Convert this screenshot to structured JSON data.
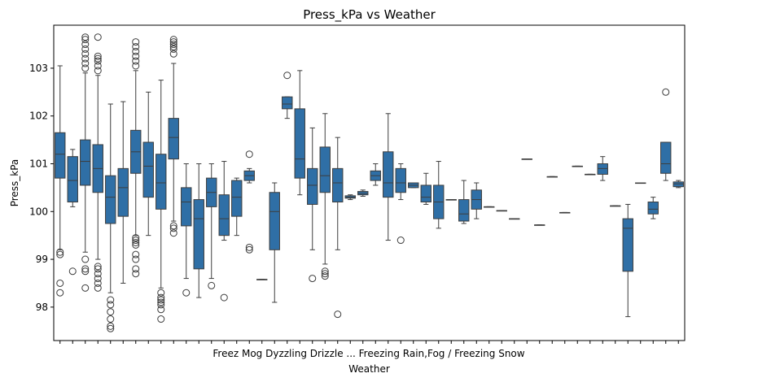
{
  "chart_data": {
    "type": "box",
    "title": "Press_kPa vs Weather",
    "xlabel": "Weather",
    "ylabel": "Press_kPa",
    "ylim": [
      97.3,
      103.9
    ],
    "yticks": [
      98,
      99,
      100,
      101,
      102,
      103
    ],
    "grid": false,
    "box_color": "#2f6fa6",
    "x_tick_labels_text": "Freez Mog Dyzzling Drizzle ... Freezing Rain,Fog / Freezing Snow",
    "categories": [
      {
        "q1": 100.7,
        "med": 101.2,
        "q3": 101.65,
        "wlo": 99.2,
        "whi": 103.05,
        "fliers": [
          99.1,
          99.15,
          98.5,
          98.3
        ]
      },
      {
        "q1": 100.2,
        "med": 100.65,
        "q3": 101.15,
        "wlo": 100.1,
        "whi": 101.3,
        "fliers": [
          98.75
        ]
      },
      {
        "q1": 100.55,
        "med": 101.05,
        "q3": 101.5,
        "wlo": 99.15,
        "whi": 102.9,
        "fliers": [
          98.4,
          98.75,
          98.8,
          99.0,
          103.0,
          103.1,
          103.2,
          103.3,
          103.4,
          103.5,
          103.6,
          103.65
        ]
      },
      {
        "q1": 100.4,
        "med": 100.9,
        "q3": 101.4,
        "wlo": 99.0,
        "whi": 102.85,
        "fliers": [
          98.4,
          98.5,
          98.6,
          98.7,
          98.8,
          98.85,
          102.95,
          103.05,
          103.15,
          103.2,
          103.25,
          103.65
        ]
      },
      {
        "q1": 99.75,
        "med": 100.3,
        "q3": 100.75,
        "wlo": 98.3,
        "whi": 102.25,
        "fliers": [
          97.55,
          97.6,
          97.75,
          97.9,
          98.05,
          98.15
        ]
      },
      {
        "q1": 99.9,
        "med": 100.5,
        "q3": 100.9,
        "wlo": 98.5,
        "whi": 102.3,
        "fliers": []
      },
      {
        "q1": 100.8,
        "med": 101.25,
        "q3": 101.7,
        "wlo": 99.5,
        "whi": 102.95,
        "fliers": [
          98.7,
          98.8,
          99.0,
          99.1,
          99.3,
          99.35,
          99.4,
          99.45,
          103.05,
          103.15,
          103.25,
          103.35,
          103.45,
          103.55
        ]
      },
      {
        "q1": 100.3,
        "med": 100.95,
        "q3": 101.45,
        "wlo": 99.5,
        "whi": 102.5,
        "fliers": []
      },
      {
        "q1": 100.05,
        "med": 100.6,
        "q3": 101.2,
        "wlo": 98.4,
        "whi": 102.75,
        "fliers": [
          97.75,
          97.95,
          98.05,
          98.1,
          98.15,
          98.2,
          98.3
        ]
      },
      {
        "q1": 101.1,
        "med": 101.55,
        "q3": 101.95,
        "wlo": 99.8,
        "whi": 103.1,
        "fliers": [
          99.55,
          99.65,
          99.7,
          103.3,
          103.4,
          103.45,
          103.5,
          103.55,
          103.6
        ]
      },
      {
        "q1": 99.7,
        "med": 100.2,
        "q3": 100.5,
        "wlo": 98.6,
        "whi": 101.0,
        "fliers": [
          98.3
        ]
      },
      {
        "q1": 98.8,
        "med": 99.85,
        "q3": 100.25,
        "wlo": 98.2,
        "whi": 101.0,
        "fliers": []
      },
      {
        "q1": 100.1,
        "med": 100.4,
        "q3": 100.7,
        "wlo": 98.6,
        "whi": 101.0,
        "fliers": [
          98.45
        ]
      },
      {
        "q1": 99.5,
        "med": 99.85,
        "q3": 100.35,
        "wlo": 99.4,
        "whi": 101.05,
        "fliers": [
          98.2
        ]
      },
      {
        "q1": 99.9,
        "med": 100.3,
        "q3": 100.65,
        "wlo": 99.5,
        "whi": 100.7,
        "fliers": []
      },
      {
        "q1": 100.65,
        "med": 100.75,
        "q3": 100.85,
        "wlo": 100.6,
        "whi": 100.9,
        "fliers": [
          101.2,
          99.25,
          99.2
        ]
      },
      {
        "q1": 98.58,
        "med": 98.58,
        "q3": 98.58,
        "wlo": 98.58,
        "whi": 98.58,
        "fliers": []
      },
      {
        "q1": 99.2,
        "med": 100.0,
        "q3": 100.4,
        "wlo": 98.1,
        "whi": 100.6,
        "fliers": []
      },
      {
        "q1": 102.15,
        "med": 102.25,
        "q3": 102.4,
        "wlo": 101.95,
        "whi": 102.4,
        "fliers": [
          102.85
        ]
      },
      {
        "q1": 100.7,
        "med": 101.1,
        "q3": 102.15,
        "wlo": 100.35,
        "whi": 102.95,
        "fliers": []
      },
      {
        "q1": 100.15,
        "med": 100.55,
        "q3": 100.9,
        "wlo": 99.2,
        "whi": 101.75,
        "fliers": [
          98.6
        ]
      },
      {
        "q1": 100.4,
        "med": 100.75,
        "q3": 101.35,
        "wlo": 98.9,
        "whi": 102.05,
        "fliers": [
          98.65,
          98.7,
          98.75
        ]
      },
      {
        "q1": 100.2,
        "med": 100.6,
        "q3": 100.9,
        "wlo": 99.2,
        "whi": 101.55,
        "fliers": [
          97.85
        ]
      },
      {
        "q1": 100.28,
        "med": 100.3,
        "q3": 100.33,
        "wlo": 100.25,
        "whi": 100.35,
        "fliers": []
      },
      {
        "q1": 100.35,
        "med": 100.38,
        "q3": 100.42,
        "wlo": 100.32,
        "whi": 100.45,
        "fliers": []
      },
      {
        "q1": 100.65,
        "med": 100.75,
        "q3": 100.85,
        "wlo": 100.55,
        "whi": 101.0,
        "fliers": []
      },
      {
        "q1": 100.3,
        "med": 100.6,
        "q3": 101.25,
        "wlo": 99.4,
        "whi": 102.05,
        "fliers": []
      },
      {
        "q1": 100.4,
        "med": 100.6,
        "q3": 100.9,
        "wlo": 100.25,
        "whi": 101.0,
        "fliers": [
          99.4
        ]
      },
      {
        "q1": 100.5,
        "med": 100.55,
        "q3": 100.6,
        "wlo": 100.5,
        "whi": 100.6,
        "fliers": []
      },
      {
        "q1": 100.2,
        "med": 100.3,
        "q3": 100.55,
        "wlo": 100.15,
        "whi": 100.8,
        "fliers": []
      },
      {
        "q1": 99.85,
        "med": 100.2,
        "q3": 100.55,
        "wlo": 99.65,
        "whi": 101.05,
        "fliers": []
      },
      {
        "q1": 100.25,
        "med": 100.25,
        "q3": 100.25,
        "wlo": 100.25,
        "whi": 100.25,
        "fliers": []
      },
      {
        "q1": 99.8,
        "med": 99.95,
        "q3": 100.25,
        "wlo": 99.75,
        "whi": 100.65,
        "fliers": []
      },
      {
        "q1": 100.05,
        "med": 100.25,
        "q3": 100.45,
        "wlo": 99.85,
        "whi": 100.6,
        "fliers": []
      },
      {
        "q1": 100.1,
        "med": 100.1,
        "q3": 100.1,
        "wlo": 100.1,
        "whi": 100.1,
        "fliers": []
      },
      {
        "q1": 100.02,
        "med": 100.02,
        "q3": 100.02,
        "wlo": 100.02,
        "whi": 100.02,
        "fliers": []
      },
      {
        "q1": 99.85,
        "med": 99.85,
        "q3": 99.85,
        "wlo": 99.85,
        "whi": 99.85,
        "fliers": []
      },
      {
        "q1": 101.1,
        "med": 101.1,
        "q3": 101.1,
        "wlo": 101.1,
        "whi": 101.1,
        "fliers": []
      },
      {
        "q1": 99.72,
        "med": 99.72,
        "q3": 99.72,
        "wlo": 99.72,
        "whi": 99.72,
        "fliers": []
      },
      {
        "q1": 100.73,
        "med": 100.73,
        "q3": 100.73,
        "wlo": 100.73,
        "whi": 100.73,
        "fliers": []
      },
      {
        "q1": 99.98,
        "med": 99.98,
        "q3": 99.98,
        "wlo": 99.98,
        "whi": 99.98,
        "fliers": []
      },
      {
        "q1": 100.95,
        "med": 100.95,
        "q3": 100.95,
        "wlo": 100.95,
        "whi": 100.95,
        "fliers": []
      },
      {
        "q1": 100.78,
        "med": 100.78,
        "q3": 100.78,
        "wlo": 100.78,
        "whi": 100.78,
        "fliers": []
      },
      {
        "q1": 100.78,
        "med": 100.9,
        "q3": 101.0,
        "wlo": 100.65,
        "whi": 101.15,
        "fliers": []
      },
      {
        "q1": 100.12,
        "med": 100.12,
        "q3": 100.12,
        "wlo": 100.12,
        "whi": 100.12,
        "fliers": []
      },
      {
        "q1": 98.75,
        "med": 99.65,
        "q3": 99.85,
        "wlo": 97.8,
        "whi": 100.15,
        "fliers": []
      },
      {
        "q1": 100.6,
        "med": 100.6,
        "q3": 100.6,
        "wlo": 100.6,
        "whi": 100.6,
        "fliers": []
      },
      {
        "q1": 99.95,
        "med": 100.05,
        "q3": 100.2,
        "wlo": 99.85,
        "whi": 100.3,
        "fliers": []
      },
      {
        "q1": 100.8,
        "med": 101.0,
        "q3": 101.45,
        "wlo": 100.65,
        "whi": 101.45,
        "fliers": [
          102.5
        ]
      },
      {
        "q1": 100.52,
        "med": 100.58,
        "q3": 100.62,
        "wlo": 100.5,
        "whi": 100.65,
        "fliers": []
      }
    ]
  }
}
